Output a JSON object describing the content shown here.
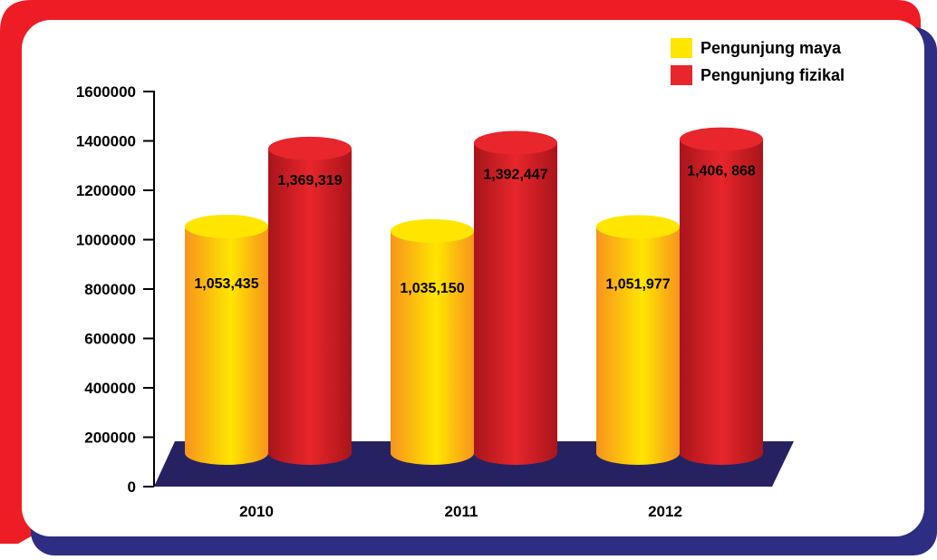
{
  "colors": {
    "frame_red": "#EE1C25",
    "frame_blue": "#2D2E83",
    "floor": "#262262",
    "maya": "#FFE500",
    "maya_dark": "#F7941D",
    "fizikal": "#E8262B",
    "fizikal_dark": "#A8151B"
  },
  "chart_data": {
    "type": "bar",
    "style": "3d-cylinder",
    "categories": [
      "2010",
      "2011",
      "2012"
    ],
    "series": [
      {
        "name": "Pengunjung maya",
        "values": [
          1053435,
          1035150,
          1051977
        ],
        "labels": [
          "1,053,435",
          "1,035,150",
          "1,051,977"
        ],
        "color": "#FFE500"
      },
      {
        "name": "Pengunjung fizikal",
        "values": [
          1369319,
          1392447,
          1406868
        ],
        "labels": [
          "1,369,319",
          "1,392,447",
          "1,406, 868"
        ],
        "color": "#E8262B"
      }
    ],
    "yticks": [
      "0",
      "200000",
      "400000",
      "600000",
      "800000",
      "1000000",
      "1200000",
      "1400000",
      "1600000"
    ],
    "ylim": [
      0,
      1600000
    ],
    "legend_position": "top-right",
    "grid": false
  }
}
